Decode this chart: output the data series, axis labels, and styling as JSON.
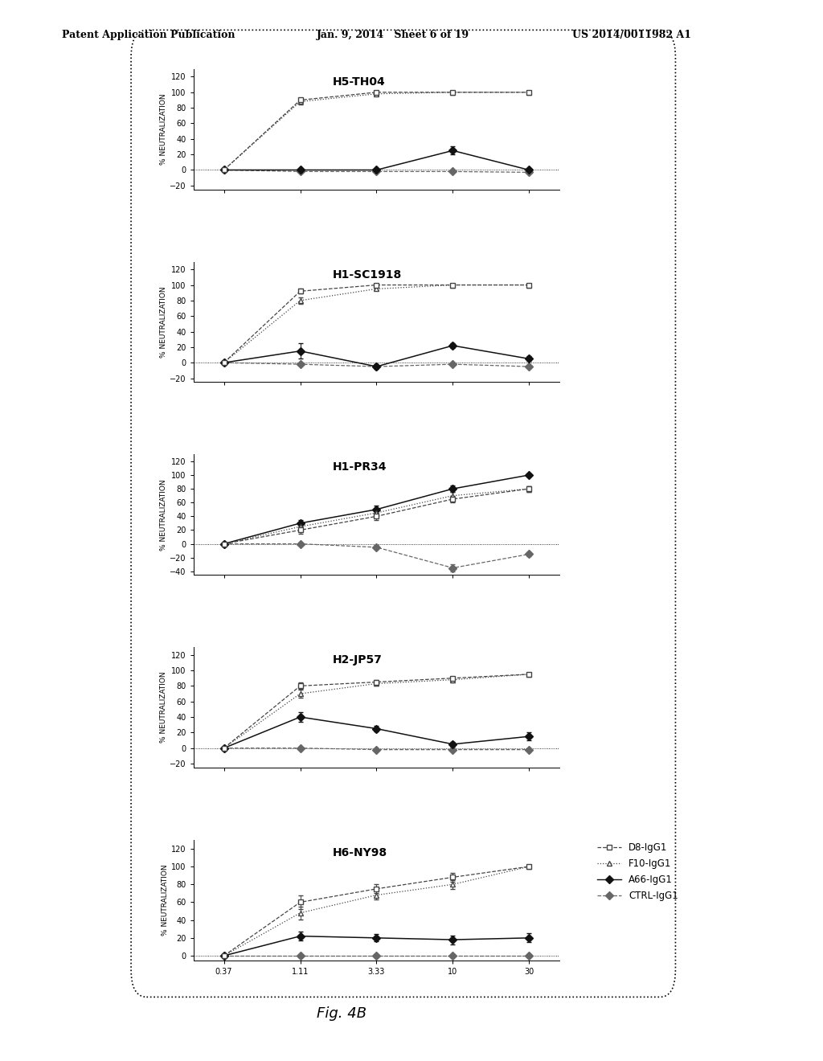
{
  "header_left": "Patent Application Publication",
  "header_mid": "Jan. 9, 2014   Sheet 6 of 19",
  "header_right": "US 2014/0011982 A1",
  "caption": "Fig. 4B",
  "x_positions": [
    0,
    1,
    2,
    3,
    4
  ],
  "x_tick_labels": [
    "0.37",
    "1.11",
    "3.33",
    "10",
    "30"
  ],
  "panels": [
    {
      "title": "H5-TH04",
      "ylim": [
        -25,
        130
      ],
      "yticks": [
        -20,
        0,
        20,
        40,
        60,
        80,
        100,
        120
      ],
      "series": {
        "D8": {
          "y": [
            0,
            90,
            100,
            100,
            100
          ],
          "yerr": [
            1,
            3,
            1,
            1,
            2
          ]
        },
        "F10": {
          "y": [
            0,
            88,
            98,
            100,
            100
          ],
          "yerr": [
            1,
            4,
            2,
            1,
            1
          ]
        },
        "A66": {
          "y": [
            0,
            0,
            0,
            25,
            0
          ],
          "yerr": [
            1,
            1,
            2,
            5,
            2
          ]
        },
        "CTRL": {
          "y": [
            0,
            -2,
            -2,
            -2,
            -3
          ],
          "yerr": [
            1,
            1,
            1,
            1,
            1
          ]
        }
      }
    },
    {
      "title": "H1-SC1918",
      "ylim": [
        -25,
        130
      ],
      "yticks": [
        -20,
        0,
        20,
        40,
        60,
        80,
        100,
        120
      ],
      "series": {
        "D8": {
          "y": [
            0,
            92,
            100,
            100,
            100
          ],
          "yerr": [
            1,
            3,
            1,
            1,
            1
          ]
        },
        "F10": {
          "y": [
            0,
            80,
            95,
            100,
            100
          ],
          "yerr": [
            1,
            4,
            2,
            1,
            1
          ]
        },
        "A66": {
          "y": [
            0,
            15,
            -5,
            22,
            5
          ],
          "yerr": [
            1,
            10,
            3,
            3,
            3
          ]
        },
        "CTRL": {
          "y": [
            0,
            -2,
            -5,
            -2,
            -5
          ],
          "yerr": [
            1,
            1,
            1,
            1,
            1
          ]
        }
      }
    },
    {
      "title": "H1-PR34",
      "ylim": [
        -45,
        130
      ],
      "yticks": [
        -40,
        -20,
        0,
        20,
        40,
        60,
        80,
        100,
        120
      ],
      "series": {
        "D8": {
          "y": [
            0,
            20,
            40,
            65,
            80
          ],
          "yerr": [
            1,
            5,
            5,
            5,
            4
          ]
        },
        "F10": {
          "y": [
            0,
            25,
            45,
            70,
            80
          ],
          "yerr": [
            1,
            5,
            5,
            5,
            4
          ]
        },
        "A66": {
          "y": [
            0,
            30,
            50,
            80,
            100
          ],
          "yerr": [
            1,
            5,
            5,
            5,
            2
          ]
        },
        "CTRL": {
          "y": [
            0,
            0,
            -5,
            -35,
            -15
          ],
          "yerr": [
            1,
            2,
            3,
            5,
            3
          ]
        }
      }
    },
    {
      "title": "H2-JP57",
      "ylim": [
        -25,
        130
      ],
      "yticks": [
        -20,
        0,
        20,
        40,
        60,
        80,
        100,
        120
      ],
      "series": {
        "D8": {
          "y": [
            0,
            80,
            85,
            90,
            95
          ],
          "yerr": [
            1,
            4,
            3,
            2,
            2
          ]
        },
        "F10": {
          "y": [
            0,
            70,
            83,
            88,
            95
          ],
          "yerr": [
            1,
            5,
            3,
            3,
            2
          ]
        },
        "A66": {
          "y": [
            0,
            40,
            25,
            5,
            15
          ],
          "yerr": [
            1,
            6,
            4,
            3,
            5
          ]
        },
        "CTRL": {
          "y": [
            0,
            0,
            -2,
            -2,
            -2
          ],
          "yerr": [
            1,
            1,
            1,
            1,
            1
          ]
        }
      }
    },
    {
      "title": "H6-NY98",
      "ylim": [
        -5,
        130
      ],
      "yticks": [
        0,
        20,
        40,
        60,
        80,
        100,
        120
      ],
      "series": {
        "D8": {
          "y": [
            0,
            60,
            75,
            88,
            100
          ],
          "yerr": [
            1,
            8,
            5,
            5,
            2
          ]
        },
        "F10": {
          "y": [
            0,
            48,
            68,
            80,
            100
          ],
          "yerr": [
            1,
            7,
            5,
            5,
            2
          ]
        },
        "A66": {
          "y": [
            0,
            22,
            20,
            18,
            20
          ],
          "yerr": [
            1,
            5,
            4,
            5,
            5
          ]
        },
        "CTRL": {
          "y": [
            0,
            0,
            0,
            0,
            0
          ],
          "yerr": [
            1,
            1,
            1,
            1,
            1
          ]
        }
      }
    }
  ]
}
